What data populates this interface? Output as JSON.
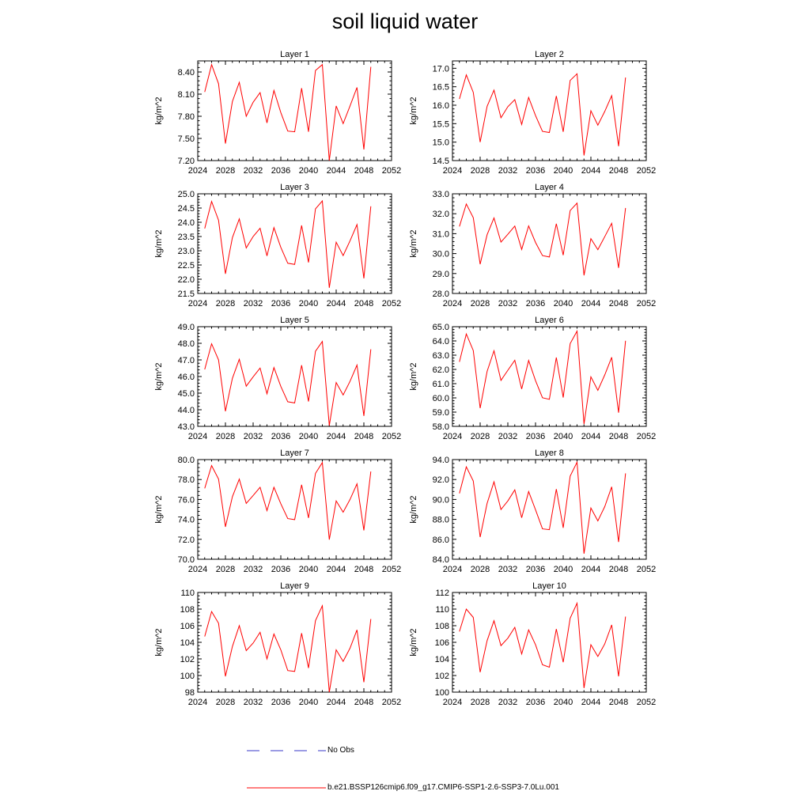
{
  "title": "soil liquid water",
  "legend": {
    "obs_label": "No Obs",
    "model_label": "b.e21.BSSP126cmip6.f09_g17.CMIP6-SSP1-2.6-SSP3-7.0Lu.001",
    "model_color": "#ff0000",
    "obs_color": "#3a3ac8"
  },
  "chart_data": [
    {
      "type": "line",
      "title": "Layer 1",
      "ylabel": "kg/m^2",
      "xlim": [
        2024,
        2052
      ],
      "ylim": [
        7.2,
        8.55
      ],
      "xticks": [
        2024,
        2028,
        2032,
        2036,
        2040,
        2044,
        2048,
        2052
      ],
      "yticks": [
        "7.20",
        "7.50",
        "7.80",
        "8.10",
        "8.40"
      ],
      "series": [
        {
          "x": [
            2025,
            2026,
            2027,
            2028,
            2029,
            2030,
            2031,
            2032,
            2033,
            2034,
            2035,
            2036,
            2037,
            2038,
            2039,
            2040,
            2041,
            2042,
            2043,
            2044,
            2045,
            2046,
            2047,
            2048,
            2049
          ],
          "y": [
            8.13,
            8.5,
            8.24,
            7.43,
            8.0,
            8.26,
            7.8,
            7.99,
            8.12,
            7.71,
            8.15,
            7.85,
            7.6,
            7.59,
            8.18,
            7.59,
            8.42,
            8.5,
            7.2,
            7.94,
            7.7,
            7.94,
            8.19,
            7.35,
            8.47
          ]
        }
      ]
    },
    {
      "type": "line",
      "title": "Layer 2",
      "ylabel": "kg/m^2",
      "xlim": [
        2024,
        2052
      ],
      "ylim": [
        14.5,
        17.2
      ],
      "xticks": [
        2024,
        2028,
        2032,
        2036,
        2040,
        2044,
        2048,
        2052
      ],
      "yticks": [
        "14.5",
        "15.0",
        "15.5",
        "16.0",
        "16.5",
        "17.0"
      ],
      "series": [
        {
          "x": [
            2025,
            2026,
            2027,
            2028,
            2029,
            2030,
            2031,
            2032,
            2033,
            2034,
            2035,
            2036,
            2037,
            2038,
            2039,
            2040,
            2041,
            2042,
            2043,
            2044,
            2045,
            2046,
            2047,
            2048,
            2049
          ],
          "y": [
            16.17,
            16.82,
            16.35,
            15.0,
            15.97,
            16.41,
            15.66,
            15.96,
            16.15,
            15.48,
            16.21,
            15.72,
            15.29,
            15.26,
            16.25,
            15.28,
            16.67,
            16.85,
            14.64,
            15.85,
            15.46,
            15.83,
            16.26,
            14.89,
            16.75
          ]
        }
      ]
    },
    {
      "type": "line",
      "title": "Layer 3",
      "ylabel": "kg/m^2",
      "xlim": [
        2024,
        2052
      ],
      "ylim": [
        21.5,
        25.0
      ],
      "xticks": [
        2024,
        2028,
        2032,
        2036,
        2040,
        2044,
        2048,
        2052
      ],
      "yticks": [
        "21.5",
        "22.0",
        "22.5",
        "23.0",
        "23.5",
        "24.0",
        "24.5",
        "25.0"
      ],
      "series": [
        {
          "x": [
            2025,
            2026,
            2027,
            2028,
            2029,
            2030,
            2031,
            2032,
            2033,
            2034,
            2035,
            2036,
            2037,
            2038,
            2039,
            2040,
            2041,
            2042,
            2043,
            2044,
            2045,
            2046,
            2047,
            2048,
            2049
          ],
          "y": [
            23.78,
            24.73,
            24.07,
            22.19,
            23.46,
            24.12,
            23.1,
            23.5,
            23.79,
            22.82,
            23.81,
            23.12,
            22.56,
            22.52,
            23.89,
            22.59,
            24.47,
            24.75,
            21.7,
            23.3,
            22.83,
            23.35,
            23.92,
            22.03,
            24.56
          ]
        }
      ]
    },
    {
      "type": "line",
      "title": "Layer 4",
      "ylabel": "kg/m^2",
      "xlim": [
        2024,
        2052
      ],
      "ylim": [
        28.0,
        33.0
      ],
      "xticks": [
        2024,
        2028,
        2032,
        2036,
        2040,
        2044,
        2048,
        2052
      ],
      "yticks": [
        "28.0",
        "29.0",
        "30.0",
        "31.0",
        "32.0",
        "33.0"
      ],
      "series": [
        {
          "x": [
            2025,
            2026,
            2027,
            2028,
            2029,
            2030,
            2031,
            2032,
            2033,
            2034,
            2035,
            2036,
            2037,
            2038,
            2039,
            2040,
            2041,
            2042,
            2043,
            2044,
            2045,
            2046,
            2047,
            2048,
            2049
          ],
          "y": [
            31.36,
            32.49,
            31.8,
            29.47,
            30.95,
            31.79,
            30.58,
            30.97,
            31.38,
            30.21,
            31.39,
            30.56,
            29.9,
            29.83,
            31.5,
            29.92,
            32.16,
            32.53,
            28.91,
            30.75,
            30.2,
            30.85,
            31.52,
            29.28,
            32.29
          ]
        }
      ]
    },
    {
      "type": "line",
      "title": "Layer 5",
      "ylabel": "kg/m^2",
      "xlim": [
        2024,
        2052
      ],
      "ylim": [
        43.0,
        49.0
      ],
      "xticks": [
        2024,
        2028,
        2032,
        2036,
        2040,
        2044,
        2048,
        2052
      ],
      "yticks": [
        "43.0",
        "44.0",
        "45.0",
        "46.0",
        "47.0",
        "48.0",
        "49.0"
      ],
      "series": [
        {
          "x": [
            2025,
            2026,
            2027,
            2028,
            2029,
            2030,
            2031,
            2032,
            2033,
            2034,
            2035,
            2036,
            2037,
            2038,
            2039,
            2040,
            2041,
            2042,
            2043,
            2044,
            2045,
            2046,
            2047,
            2048,
            2049
          ],
          "y": [
            46.43,
            47.97,
            47.0,
            43.91,
            45.89,
            47.04,
            45.42,
            45.98,
            46.51,
            44.96,
            46.54,
            45.41,
            44.48,
            44.41,
            46.68,
            44.5,
            47.52,
            48.11,
            43.05,
            45.64,
            44.89,
            45.71,
            46.69,
            43.63,
            47.64
          ]
        }
      ]
    },
    {
      "type": "line",
      "title": "Layer 6",
      "ylabel": "kg/m^2",
      "xlim": [
        2024,
        2052
      ],
      "ylim": [
        58.0,
        65.0
      ],
      "xticks": [
        2024,
        2028,
        2032,
        2036,
        2040,
        2044,
        2048,
        2052
      ],
      "yticks": [
        "58.0",
        "59.0",
        "60.0",
        "61.0",
        "62.0",
        "63.0",
        "64.0",
        "65.0"
      ],
      "series": [
        {
          "x": [
            2025,
            2026,
            2027,
            2028,
            2029,
            2030,
            2031,
            2032,
            2033,
            2034,
            2035,
            2036,
            2037,
            2038,
            2039,
            2040,
            2041,
            2042,
            2043,
            2044,
            2045,
            2046,
            2047,
            2048,
            2049
          ],
          "y": [
            62.53,
            64.49,
            63.33,
            59.28,
            61.86,
            63.31,
            61.23,
            61.94,
            62.64,
            60.63,
            62.63,
            61.21,
            60.01,
            59.9,
            62.84,
            60.03,
            63.81,
            64.69,
            58.16,
            61.48,
            60.53,
            61.61,
            62.85,
            58.96,
            64.01
          ]
        }
      ]
    },
    {
      "type": "line",
      "title": "Layer 7",
      "ylabel": "kg/m^2",
      "xlim": [
        2024,
        2052
      ],
      "ylim": [
        70.0,
        80.0
      ],
      "xticks": [
        2024,
        2028,
        2032,
        2036,
        2040,
        2044,
        2048,
        2052
      ],
      "yticks": [
        "70.0",
        "72.0",
        "74.0",
        "76.0",
        "78.0",
        "80.0"
      ],
      "series": [
        {
          "x": [
            2025,
            2026,
            2027,
            2028,
            2029,
            2030,
            2031,
            2032,
            2033,
            2034,
            2035,
            2036,
            2037,
            2038,
            2039,
            2040,
            2041,
            2042,
            2043,
            2044,
            2045,
            2046,
            2047,
            2048,
            2049
          ],
          "y": [
            77.11,
            79.4,
            78.05,
            73.25,
            76.28,
            78.04,
            75.6,
            76.4,
            77.22,
            74.88,
            77.22,
            75.57,
            74.08,
            73.98,
            77.47,
            74.14,
            78.61,
            79.7,
            71.97,
            75.85,
            74.72,
            76.0,
            77.56,
            72.9,
            78.8
          ]
        }
      ]
    },
    {
      "type": "line",
      "title": "Layer 8",
      "ylabel": "kg/m^2",
      "xlim": [
        2024,
        2052
      ],
      "ylim": [
        84.0,
        94.0
      ],
      "xticks": [
        2024,
        2028,
        2032,
        2036,
        2040,
        2044,
        2048,
        2052
      ],
      "yticks": [
        "84.0",
        "86.0",
        "88.0",
        "90.0",
        "92.0",
        "94.0"
      ],
      "series": [
        {
          "x": [
            2025,
            2026,
            2027,
            2028,
            2029,
            2030,
            2031,
            2032,
            2033,
            2034,
            2035,
            2036,
            2037,
            2038,
            2039,
            2040,
            2041,
            2042,
            2043,
            2044,
            2045,
            2046,
            2047,
            2048,
            2049
          ],
          "y": [
            90.6,
            93.27,
            91.86,
            86.22,
            89.61,
            91.77,
            88.99,
            89.85,
            90.96,
            88.17,
            90.79,
            88.97,
            87.05,
            86.97,
            91.04,
            87.15,
            92.34,
            93.74,
            84.56,
            89.14,
            87.85,
            89.28,
            91.27,
            85.73,
            92.62
          ]
        }
      ]
    },
    {
      "type": "line",
      "title": "Layer 9",
      "ylabel": "kg/m^2",
      "xlim": [
        2024,
        2052
      ],
      "ylim": [
        98,
        110
      ],
      "xticks": [
        2024,
        2028,
        2032,
        2036,
        2040,
        2044,
        2048,
        2052
      ],
      "yticks": [
        "98",
        "100",
        "102",
        "104",
        "106",
        "108",
        "110"
      ],
      "series": [
        {
          "x": [
            2025,
            2026,
            2027,
            2028,
            2029,
            2030,
            2031,
            2032,
            2033,
            2034,
            2035,
            2036,
            2037,
            2038,
            2039,
            2040,
            2041,
            2042,
            2043,
            2044,
            2045,
            2046,
            2047,
            2048,
            2049
          ],
          "y": [
            104.7,
            107.7,
            106.3,
            99.9,
            103.5,
            106.0,
            103.0,
            103.9,
            105.2,
            102.0,
            105.0,
            103.1,
            100.6,
            100.5,
            105.1,
            100.9,
            106.6,
            108.4,
            98.0,
            103.1,
            101.7,
            103.3,
            105.5,
            99.2,
            106.8
          ]
        }
      ]
    },
    {
      "type": "line",
      "title": "Layer 10",
      "ylabel": "kg/m^2",
      "xlim": [
        2024,
        2052
      ],
      "ylim": [
        100,
        112
      ],
      "xticks": [
        2024,
        2028,
        2032,
        2036,
        2040,
        2044,
        2048,
        2052
      ],
      "yticks": [
        "100",
        "102",
        "104",
        "106",
        "108",
        "110",
        "112"
      ],
      "series": [
        {
          "x": [
            2025,
            2026,
            2027,
            2028,
            2029,
            2030,
            2031,
            2032,
            2033,
            2034,
            2035,
            2036,
            2037,
            2038,
            2039,
            2040,
            2041,
            2042,
            2043,
            2044,
            2045,
            2046,
            2047,
            2048,
            2049
          ],
          "y": [
            107.3,
            110.0,
            109.0,
            102.4,
            106.2,
            108.6,
            105.6,
            106.5,
            107.8,
            104.6,
            107.5,
            105.7,
            103.3,
            103.0,
            107.6,
            103.6,
            108.9,
            110.7,
            100.5,
            105.7,
            104.3,
            105.8,
            108.1,
            101.9,
            109.1
          ]
        }
      ]
    }
  ]
}
